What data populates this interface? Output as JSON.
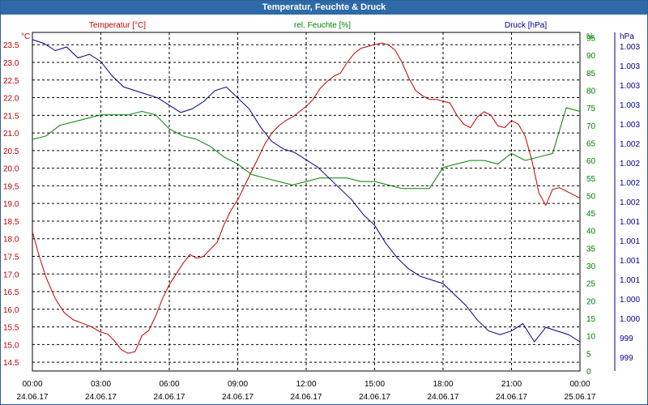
{
  "window": {
    "title": "Temperatur, Feuchte & Druck"
  },
  "colors": {
    "temperature": "#c00000",
    "humidity": "#008000",
    "pressure": "#00008b",
    "frame": "#2f6aa8"
  },
  "chart_data": {
    "type": "line",
    "title": "Temperatur, Feuchte & Druck",
    "grid": true,
    "x_axis": {
      "range": [
        "24.06.17 00:00",
        "25.06.17 00:00"
      ],
      "ticks": [
        {
          "time": "00:00",
          "date": "24.06.17"
        },
        {
          "time": "03:00",
          "date": "24.06.17"
        },
        {
          "time": "06:00",
          "date": "24.06.17"
        },
        {
          "time": "09:00",
          "date": "24.06.17"
        },
        {
          "time": "12:00",
          "date": "24.06.17"
        },
        {
          "time": "15:00",
          "date": "24.06.17"
        },
        {
          "time": "18:00",
          "date": "24.06.17"
        },
        {
          "time": "21:00",
          "date": "24.06.17"
        },
        {
          "time": "00:00",
          "date": "25.06.17"
        }
      ]
    },
    "axes": {
      "temperature": {
        "unit": "°C",
        "label": "Temperatur [°C]",
        "range": [
          14.25,
          23.85
        ],
        "ticks": [
          "14.5",
          "15.0",
          "15.5",
          "16.0",
          "16.5",
          "17.0",
          "17.5",
          "18.0",
          "18.5",
          "19.0",
          "19.5",
          "20.0",
          "20.5",
          "21.0",
          "21.5",
          "22.0",
          "22.5",
          "23.0",
          "23.5"
        ]
      },
      "humidity": {
        "unit": "%",
        "label": "rel. Feuchte [%]",
        "range": [
          0,
          96.5
        ],
        "ticks": [
          "0",
          "5",
          "10",
          "15",
          "20",
          "25",
          "30",
          "35",
          "40",
          "45",
          "50",
          "55",
          "60",
          "65",
          "70",
          "75",
          "80",
          "85",
          "90",
          "95"
        ]
      },
      "pressure": {
        "unit": "hPa",
        "label": "Druck [hPa]",
        "ticks": [
          "999",
          "999",
          "1.000",
          "1.000",
          "1.001",
          "1.001",
          "1.001",
          "1.001",
          "1.002",
          "1.002",
          "1.002",
          "1.002",
          "1.003",
          "1.003",
          "1.003",
          "1.003",
          "1.003"
        ],
        "range": [
          998.45,
          1003.1
        ]
      }
    },
    "series": [
      {
        "name": "Temperatur [°C]",
        "axis": "temperature",
        "x": [
          0,
          0.3,
          0.6,
          1.0,
          1.4,
          1.8,
          2.2,
          2.6,
          3.0,
          3.3,
          3.6,
          3.9,
          4.2,
          4.5,
          4.8,
          5.1,
          5.4,
          5.7,
          6.0,
          6.3,
          6.6,
          6.9,
          7.2,
          7.5,
          7.8,
          8.1,
          8.4,
          8.7,
          9.0,
          9.3,
          9.6,
          9.9,
          10.2,
          10.5,
          10.8,
          11.1,
          11.4,
          11.7,
          12.0,
          12.3,
          12.6,
          12.9,
          13.2,
          13.5,
          13.8,
          14.1,
          14.4,
          14.7,
          15.0,
          15.3,
          15.6,
          15.9,
          16.2,
          16.5,
          16.8,
          17.1,
          17.4,
          17.7,
          18.0,
          18.3,
          18.6,
          18.9,
          19.2,
          19.5,
          19.8,
          20.1,
          20.4,
          20.7,
          21.0,
          21.3,
          21.6,
          21.9,
          22.2,
          22.5,
          22.8,
          23.1,
          23.4,
          23.7,
          24.0
        ],
        "values": [
          18.2,
          17.5,
          16.9,
          16.3,
          15.9,
          15.7,
          15.6,
          15.5,
          15.35,
          15.3,
          15.1,
          14.85,
          14.75,
          14.8,
          15.25,
          15.4,
          15.8,
          16.3,
          16.7,
          17.0,
          17.3,
          17.55,
          17.45,
          17.5,
          17.7,
          17.9,
          18.4,
          18.8,
          19.1,
          19.5,
          19.9,
          20.3,
          20.7,
          21.0,
          21.2,
          21.35,
          21.45,
          21.6,
          21.75,
          21.95,
          22.25,
          22.45,
          22.6,
          22.7,
          23.0,
          23.25,
          23.4,
          23.45,
          23.5,
          23.55,
          23.5,
          23.35,
          23.0,
          22.55,
          22.2,
          22.05,
          21.95,
          21.95,
          21.9,
          21.85,
          21.5,
          21.25,
          21.15,
          21.45,
          21.6,
          21.5,
          21.2,
          21.15,
          21.35,
          21.25,
          20.9,
          20.2,
          19.3,
          18.95,
          19.4,
          19.45,
          19.35,
          19.25,
          19.15
        ],
        "_note": "series values approximate"
      },
      {
        "name": "rel. Feuchte [%]",
        "axis": "humidity",
        "x": [
          0,
          0.6,
          1.2,
          1.8,
          2.4,
          3.0,
          3.6,
          4.2,
          4.8,
          5.4,
          6.0,
          6.6,
          7.2,
          7.8,
          8.4,
          9.0,
          9.6,
          10.2,
          10.8,
          11.4,
          12.0,
          12.6,
          13.2,
          13.8,
          14.4,
          15.0,
          15.6,
          16.2,
          16.8,
          17.4,
          18.0,
          18.6,
          19.2,
          19.8,
          20.4,
          21.0,
          21.6,
          22.2,
          22.8,
          23.4,
          24.0
        ],
        "values": [
          66,
          67,
          70,
          71,
          72,
          73,
          73,
          73,
          74,
          73,
          69,
          67,
          66,
          64,
          61,
          59,
          56,
          55,
          54,
          53,
          54,
          55,
          55,
          55,
          54,
          54,
          53,
          52,
          52,
          52,
          58,
          59,
          60,
          60,
          59,
          62,
          60,
          61,
          62,
          75,
          74
        ]
      },
      {
        "name": "Druck [hPa]",
        "axis": "pressure",
        "x": [
          0,
          0.5,
          1.0,
          1.5,
          2.0,
          2.5,
          3.0,
          3.5,
          4.0,
          4.5,
          5.0,
          5.5,
          6.0,
          6.5,
          7.0,
          7.5,
          8.0,
          8.5,
          9.0,
          9.5,
          10.0,
          10.5,
          11.0,
          11.5,
          12.0,
          12.5,
          13.0,
          13.5,
          14.0,
          14.5,
          15.0,
          15.5,
          16.0,
          16.5,
          17.0,
          17.5,
          18.0,
          18.5,
          19.0,
          19.5,
          20.0,
          20.5,
          21.0,
          21.5,
          22.0,
          22.5,
          23.0,
          23.5,
          24.0
        ],
        "values": [
          1003.0,
          1002.95,
          1002.85,
          1002.9,
          1002.75,
          1002.8,
          1002.7,
          1002.5,
          1002.35,
          1002.3,
          1002.25,
          1002.2,
          1002.1,
          1002.0,
          1002.05,
          1002.15,
          1002.3,
          1002.35,
          1002.2,
          1002.05,
          1001.8,
          1001.6,
          1001.5,
          1001.45,
          1001.35,
          1001.25,
          1001.1,
          1000.95,
          1000.8,
          1000.6,
          1000.45,
          1000.2,
          1000.0,
          999.85,
          999.75,
          999.7,
          999.65,
          999.5,
          999.35,
          999.15,
          999.0,
          998.95,
          999.0,
          999.1,
          998.85,
          999.05,
          999.0,
          998.95,
          998.85
        ]
      }
    ]
  }
}
